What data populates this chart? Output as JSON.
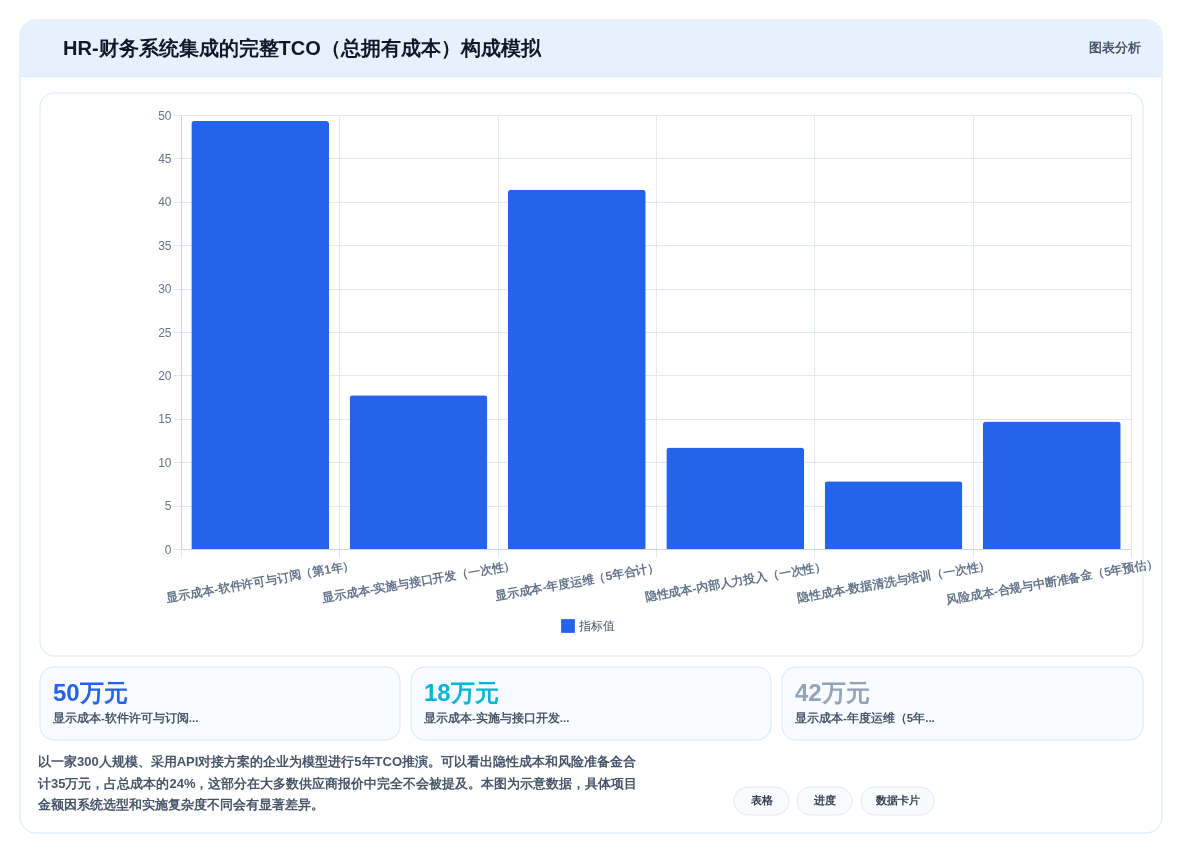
{
  "chart_data": {
    "type": "bar",
    "title": "HR-财务系统集成的完整TCO（总拥有成本）构成模拟",
    "categories": [
      "显示成本-软件许可与订阅（第1年）",
      "显示成本-实施与接口开发（一次性）",
      "显示成本-年度运维（5年合计）",
      "隐性成本-内部人力投入（一次性）",
      "隐性成本-数据清洗与培训（一次性）",
      "风险成本-合规与中断准备金（5年预估）"
    ],
    "series": [
      {
        "name": "指标值",
        "color": "#2563eb",
        "values": [
          49.3,
          17.7,
          41.4,
          11.7,
          7.8,
          14.7
        ]
      }
    ],
    "ylim": [
      0,
      50
    ],
    "yticks": [
      0,
      5,
      10,
      15,
      20,
      25,
      30,
      35,
      40,
      45,
      50
    ],
    "grid": true,
    "legend": "bottom",
    "annotations": [
      "图表分析",
      "50万元",
      "显示成本-软件许可与订阅...",
      "18万元",
      "显示成本-实施与接口开发...",
      "42万元",
      "显示成本-年度运维（5年...",
      "以一家300人规模、采用API对接方案的企业为模型进行5年TCO推演。可以看出隐性成本和风险准备金合计35万元，占总成本的24%，这部分在大多数供应商报价中完全不会被提及。本图为示意数据，具体项目金额因系统选型和实施复杂度不同会有显著差异。",
      "表格",
      "进度",
      "数据卡片"
    ]
  }
}
